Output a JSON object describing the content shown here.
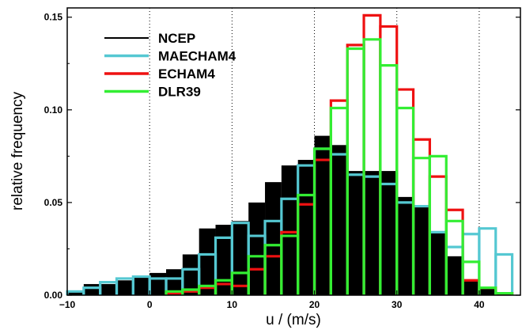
{
  "chart_data": {
    "type": "bar",
    "xlabel": "u / (m/s)",
    "ylabel": "relative frequency",
    "xlim": [
      -10,
      45
    ],
    "ylim": [
      0,
      0.155
    ],
    "xticks": [
      -10,
      0,
      10,
      20,
      30,
      40
    ],
    "yticks": [
      0.0,
      0.05,
      0.1,
      0.15
    ],
    "x_tick_labels": [
      "−10",
      "0",
      "10",
      "20",
      "30",
      "40"
    ],
    "y_tick_labels": [
      "0.00",
      "0.05",
      "0.10",
      "0.15"
    ],
    "grid": "vertical dotted lines at x ticks",
    "legend_position": "top-left",
    "bin_width": 2,
    "bin_left_edges": [
      -10,
      -8,
      -6,
      -4,
      -2,
      0,
      2,
      4,
      6,
      8,
      10,
      12,
      14,
      16,
      18,
      20,
      22,
      24,
      26,
      28,
      30,
      32,
      34,
      36,
      38,
      40,
      42
    ],
    "series": [
      {
        "name": "NCEP",
        "color": "#000000",
        "style": "filled",
        "values": [
          0.002,
          0.006,
          0.006,
          0.008,
          0.01,
          0.012,
          0.014,
          0.022,
          0.036,
          0.038,
          0.04,
          0.05,
          0.061,
          0.07,
          0.073,
          0.086,
          0.081,
          0.067,
          0.067,
          0.067,
          0.053,
          0.048,
          0.034,
          0.021,
          0.008,
          0.004,
          0.001
        ]
      },
      {
        "name": "MAECHAM4",
        "color": "#55c8d2",
        "style": "step",
        "values": [
          0.002,
          0.004,
          0.007,
          0.009,
          0.01,
          0.009,
          0.009,
          0.014,
          0.022,
          0.031,
          0.039,
          0.032,
          0.04,
          0.052,
          0.07,
          0.079,
          0.076,
          0.065,
          0.064,
          0.06,
          0.05,
          0.048,
          0.034,
          0.026,
          0.033,
          0.036,
          0.022
        ]
      },
      {
        "name": "ECHAM4",
        "color": "#ee1111",
        "style": "step",
        "values": [
          0.0,
          0.0,
          0.0,
          0.0,
          0.0,
          0.0,
          0.001,
          0.002,
          0.004,
          0.006,
          0.005,
          0.014,
          0.021,
          0.034,
          0.049,
          0.073,
          0.105,
          0.135,
          0.151,
          0.145,
          0.111,
          0.084,
          0.064,
          0.046,
          0.008,
          0.004,
          0.001
        ]
      },
      {
        "name": "DLR39",
        "color": "#33ee33",
        "style": "step",
        "values": [
          0.0,
          0.0,
          0.0,
          0.0,
          0.0,
          0.0,
          0.002,
          0.003,
          0.005,
          0.008,
          0.012,
          0.021,
          0.027,
          0.032,
          0.054,
          0.079,
          0.101,
          0.133,
          0.138,
          0.124,
          0.101,
          0.074,
          0.075,
          0.04,
          0.018,
          0.004,
          0.001
        ]
      }
    ]
  }
}
